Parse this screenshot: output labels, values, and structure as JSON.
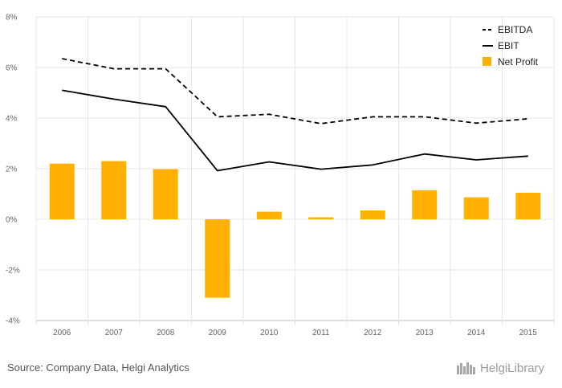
{
  "chart_data": {
    "type": "bar+line",
    "categories": [
      "2006",
      "2007",
      "2008",
      "2009",
      "2010",
      "2011",
      "2012",
      "2013",
      "2014",
      "2015"
    ],
    "series": [
      {
        "name": "EBITDA",
        "kind": "line",
        "style": "dashed",
        "color": "#000000",
        "values": [
          6.35,
          5.95,
          5.95,
          4.05,
          4.15,
          3.78,
          4.05,
          4.05,
          3.8,
          3.97
        ]
      },
      {
        "name": "EBIT",
        "kind": "line",
        "style": "solid",
        "color": "#000000",
        "values": [
          5.1,
          4.75,
          4.45,
          1.92,
          2.27,
          1.98,
          2.15,
          2.58,
          2.35,
          2.5
        ]
      },
      {
        "name": "Net Profit",
        "kind": "bar",
        "color": "#FFB000",
        "values": [
          2.2,
          2.3,
          1.98,
          -3.1,
          0.3,
          0.08,
          0.35,
          1.15,
          0.87,
          1.05
        ]
      }
    ],
    "y_ticks": [
      "8%",
      "6%",
      "4%",
      "2%",
      "0%",
      "-2%",
      "-4%"
    ],
    "ylim": [
      -4,
      8
    ],
    "grid": true,
    "legend_position": "top-right"
  },
  "footer": {
    "source": "Source: Company Data, Helgi Analytics",
    "logo_text": "HelgiLibrary"
  }
}
